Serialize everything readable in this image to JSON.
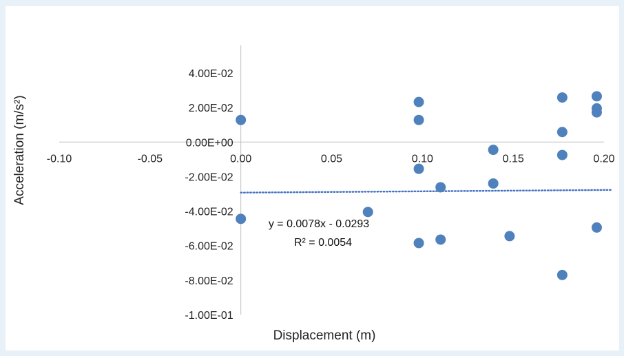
{
  "chart_data": {
    "type": "scatter",
    "xlabel": "Displacement (m)",
    "ylabel": "Acceleration (m/s²)",
    "xlim": [
      -0.1,
      0.2
    ],
    "ylim": [
      -0.1,
      0.04
    ],
    "x_ticks": [
      -0.1,
      -0.05,
      0.0,
      0.05,
      0.1,
      0.15,
      0.2
    ],
    "x_tick_labels": [
      "-0.10",
      "-0.05",
      "0.00",
      "0.05",
      "0.10",
      "0.15",
      "0.20"
    ],
    "y_ticks": [
      0.04,
      0.02,
      0.0,
      -0.02,
      -0.04,
      -0.06,
      -0.08,
      -0.1
    ],
    "y_tick_labels": [
      "4.00E-02",
      "2.00E-02",
      "0.00E+00",
      "-2.00E-02",
      "-4.00E-02",
      "-6.00E-02",
      "-8.00E-02",
      "-1.00E-01"
    ],
    "grid": false,
    "marker_color": "#4f81bd",
    "trendline_color": "#4472c4",
    "series": [
      {
        "points": [
          [
            0.0,
            0.0128
          ],
          [
            0.0,
            -0.0445
          ],
          [
            0.07,
            -0.0405
          ],
          [
            0.098,
            0.0232
          ],
          [
            0.098,
            0.0128
          ],
          [
            0.098,
            -0.0155
          ],
          [
            0.098,
            -0.0585
          ],
          [
            0.11,
            -0.0262
          ],
          [
            0.11,
            -0.0565
          ],
          [
            0.139,
            -0.0045
          ],
          [
            0.139,
            -0.024
          ],
          [
            0.148,
            -0.0545
          ],
          [
            0.177,
            0.0258
          ],
          [
            0.177,
            0.0058
          ],
          [
            0.177,
            -0.0075
          ],
          [
            0.177,
            -0.077
          ],
          [
            0.196,
            0.0265
          ],
          [
            0.196,
            0.0195
          ],
          [
            0.196,
            0.0172
          ],
          [
            0.196,
            -0.0495
          ]
        ]
      }
    ],
    "trendline": {
      "slope": 0.0078,
      "intercept": -0.0293,
      "x_range": [
        0.0,
        0.2
      ],
      "style": "dotted",
      "equation_label": "y = 0.0078x - 0.0293",
      "r2_label": "R² = 0.0054"
    }
  }
}
